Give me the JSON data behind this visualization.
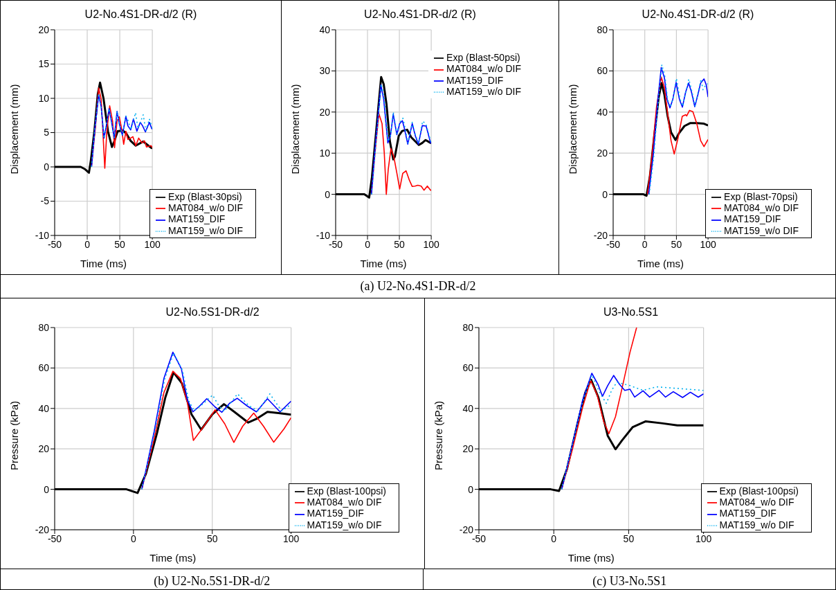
{
  "chart_data": [
    {
      "type": "line",
      "title": "U2-No.4S1-DR-d/2 (R)",
      "xlabel": "Time (ms)",
      "ylabel": "Displacement (mm)",
      "xlim": [
        -50,
        100
      ],
      "xticks": [
        -50,
        0,
        50,
        100
      ],
      "ylim": [
        -10,
        20
      ],
      "yticks": [
        -10,
        -5,
        0,
        5,
        10,
        15,
        20
      ],
      "grid": true,
      "legend": "bottom right",
      "marker": "none",
      "series": [
        {
          "name": "Exp (Blast-30psi)",
          "color": "#000000",
          "x": [
            -50,
            -10,
            -4,
            2.6,
            5.7,
            11,
            16.2,
            19.7,
            25,
            31.9,
            38,
            41.5,
            46.7,
            54.5,
            59.8,
            66.7,
            74.6,
            86,
            98,
            100
          ],
          "values": [
            0,
            0,
            -0.3,
            -0.85,
            1,
            5.2,
            10.6,
            12.3,
            10,
            5.2,
            2.9,
            3.7,
            5.2,
            5.3,
            4.9,
            3.8,
            3.1,
            3.7,
            2.8,
            2.7
          ]
        },
        {
          "name": "MAT084_w/o DIF",
          "color": "#ff0000",
          "x": [
            6.6,
            12.7,
            17.6,
            21.4,
            27,
            30.1,
            34.5,
            38.9,
            42,
            45.8,
            49.3,
            52.8,
            56,
            59.4,
            62.4,
            66.7,
            70.2,
            74.6,
            79,
            84,
            88,
            91,
            98,
            100
          ],
          "values": [
            0,
            6,
            11.5,
            9.9,
            -0.2,
            5.2,
            8.9,
            6.7,
            2.8,
            6.7,
            7.3,
            5.6,
            3.3,
            5.2,
            4,
            4.2,
            4.4,
            3.1,
            4.2,
            3.5,
            3.8,
            2.9,
            3.1,
            2.8
          ]
        },
        {
          "name": "MAT159_DIF",
          "color": "#0000ff",
          "x": [
            6.6,
            11.8,
            17.6,
            21.4,
            25.8,
            29.3,
            33.6,
            37.1,
            41.5,
            45.8,
            49.3,
            54,
            59.4,
            62.4,
            66.7,
            71,
            76.3,
            81.5,
            85,
            89.4,
            95.5,
            99,
            100
          ],
          "values": [
            0,
            5.6,
            10.5,
            8.8,
            4.2,
            6,
            8.5,
            6.7,
            4.2,
            8.1,
            6.3,
            4.6,
            7.4,
            6,
            5.4,
            7,
            5.2,
            6.5,
            6,
            5.1,
            6.5,
            5.6,
            5.5
          ]
        },
        {
          "name": "MAT159_w/o DIF",
          "color": "#00b0f0",
          "line_style": "dotted",
          "x": [
            6.6,
            11.8,
            17.6,
            21.4,
            25.8,
            29.3,
            33.6,
            37.1,
            41.5,
            45.8,
            49.3,
            54,
            59.4,
            63,
            67,
            74.2,
            78,
            86,
            90,
            95.5,
            100
          ],
          "values": [
            0,
            5.6,
            10.7,
            8.8,
            4.2,
            6,
            8.5,
            6.7,
            4.2,
            8.1,
            6.3,
            4.6,
            7.4,
            6.7,
            5.4,
            7.9,
            5.6,
            7.6,
            5.3,
            7,
            5.6
          ]
        }
      ]
    },
    {
      "type": "line",
      "title": "U2-No.4S1-DR-d/2 (R)",
      "xlabel": "Time (ms)",
      "ylabel": "Displacement (mm)",
      "xlim": [
        -50,
        100
      ],
      "xticks": [
        -50,
        0,
        50,
        100
      ],
      "ylim": [
        -10,
        40
      ],
      "yticks": [
        -10,
        0,
        10,
        20,
        30,
        40
      ],
      "grid": true,
      "legend": "top right",
      "marker": "none",
      "annotations": [
        "(a) U2-No.4S1-DR-d/2"
      ],
      "series": [
        {
          "name": "Exp (Blast-50psi)",
          "color": "#000000",
          "x": [
            -50,
            -5,
            2.6,
            7,
            14,
            21.4,
            25.4,
            29.8,
            35,
            40.4,
            43,
            49,
            54.4,
            62.3,
            68.4,
            75.4,
            80.7,
            86,
            91.2,
            99,
            100
          ],
          "values": [
            0,
            0,
            -0.8,
            4.2,
            16,
            28.5,
            26.8,
            21.9,
            13,
            8.5,
            9.2,
            14.2,
            15.4,
            15.7,
            13.9,
            12.8,
            12,
            12.5,
            13.2,
            12.5,
            12.5
          ]
        },
        {
          "name": "MAT084_w/o DIF",
          "color": "#ff0000",
          "x": [
            6.1,
            11.4,
            17.9,
            22.8,
            26.3,
            29.5,
            32.5,
            36.8,
            41.2,
            46.5,
            50.5,
            55.3,
            60.5,
            65.8,
            70.2,
            74.6,
            79,
            84.2,
            88.6,
            93.9,
            99,
            100
          ],
          "values": [
            0,
            9.5,
            19.6,
            17.2,
            10.1,
            0,
            6,
            11.1,
            9.2,
            4.8,
            1.3,
            5.1,
            5.7,
            3.4,
            1.9,
            2,
            2.2,
            2,
            1,
            2,
            1,
            1
          ]
        },
        {
          "name": "MAT159_DIF",
          "color": "#0000ff",
          "x": [
            6.1,
            12.3,
            21,
            25.4,
            31.9,
            36,
            40.4,
            46,
            50.5,
            54.7,
            57.9,
            63.2,
            70.2,
            75.1,
            79.8,
            86,
            92,
            99,
            100
          ],
          "values": [
            0,
            11.9,
            26.6,
            23.1,
            12.5,
            14.2,
            19.5,
            14.5,
            17.2,
            17.9,
            16,
            12.2,
            17.2,
            14.2,
            12.2,
            16.7,
            16.6,
            12.5,
            12.5
          ]
        },
        {
          "name": "MAT159_w/o DIF",
          "color": "#00b0f0",
          "line_style": "dotted",
          "x": [
            6.6,
            12.8,
            21.5,
            26,
            32.3,
            36.3,
            40.4,
            46,
            50.5,
            55.5,
            58.5,
            63.5,
            70.2,
            75.1,
            80,
            86.5,
            92,
            99,
            100
          ],
          "values": [
            0,
            11.5,
            26.8,
            23.5,
            12.8,
            14.5,
            20,
            14.8,
            17.5,
            18.5,
            16.5,
            12.5,
            17.5,
            14.5,
            12.5,
            17.8,
            17,
            13,
            12.8
          ]
        }
      ]
    },
    {
      "type": "line",
      "title": "U2-No.4S1-DR-d/2 (R)",
      "xlabel": "Time (ms)",
      "ylabel": "Displacement (mm)",
      "xlim": [
        -50,
        100
      ],
      "xticks": [
        -50,
        0,
        50,
        100
      ],
      "ylim": [
        -20,
        80
      ],
      "yticks": [
        -20,
        0,
        20,
        40,
        60,
        80
      ],
      "grid": true,
      "legend": "bottom right",
      "marker": "none",
      "series": [
        {
          "name": "Exp (Blast-70psi)",
          "color": "#000000",
          "x": [
            -50,
            -2,
            2.7,
            8,
            15,
            22,
            26.5,
            31,
            36.2,
            41.5,
            48.6,
            53.9,
            62.7,
            71.6,
            82.2,
            92.8,
            100
          ],
          "values": [
            0,
            0,
            -0.7,
            8.5,
            28.5,
            47.3,
            54.1,
            48.5,
            37.9,
            30.2,
            26.4,
            29.6,
            33.2,
            34.6,
            34.6,
            34.4,
            33.5
          ]
        },
        {
          "name": "MAT084_w/o DIF",
          "color": "#ff0000",
          "x": [
            4.4,
            11.5,
            18.6,
            26,
            31,
            36.2,
            41.5,
            46.5,
            52.1,
            59.2,
            64.5,
            66.3,
            70.7,
            76,
            82.2,
            88.3,
            93.6,
            100
          ],
          "values": [
            0,
            19,
            42.6,
            57,
            52,
            39,
            26.1,
            19.6,
            26.7,
            37.9,
            38.7,
            38.1,
            40.8,
            40.2,
            34.4,
            26.1,
            23.2,
            26.7
          ]
        },
        {
          "name": "MAT159_DIF",
          "color": "#0000ff",
          "x": [
            6.2,
            13.3,
            20.3,
            26,
            31,
            35.3,
            39.8,
            44.2,
            49.5,
            54.8,
            59.5,
            64.5,
            69.3,
            73.9,
            79,
            84,
            88.3,
            93.6,
            97.2,
            100
          ],
          "values": [
            0,
            19,
            44.9,
            61.6,
            56.7,
            46.1,
            42,
            46.1,
            54.4,
            46.1,
            42.4,
            49.6,
            54.1,
            49.6,
            42.6,
            48.5,
            54.1,
            56.1,
            53.2,
            47.3
          ]
        },
        {
          "name": "MAT159_w/o DIF",
          "color": "#00b0f0",
          "line_style": "dotted",
          "x": [
            7,
            14,
            21,
            27,
            32,
            36,
            40.5,
            45,
            50,
            55.5,
            60,
            65,
            69.6,
            74.5,
            79.5,
            84.5,
            89,
            92,
            96,
            100
          ],
          "values": [
            0,
            18,
            44,
            63,
            57,
            46,
            42.5,
            47,
            56.4,
            46.5,
            42.8,
            50,
            56,
            50,
            43,
            50,
            56,
            50.8,
            53,
            53.8
          ]
        }
      ]
    },
    {
      "type": "line",
      "title": "U2-No.5S1-DR-d/2",
      "xlabel": "Time (ms)",
      "ylabel": "Pressure (kPa)",
      "xlim": [
        -50,
        100
      ],
      "xticks": [
        -50,
        0,
        50,
        100
      ],
      "ylim": [
        -20,
        80
      ],
      "yticks": [
        -20,
        0,
        20,
        40,
        60,
        80
      ],
      "grid": true,
      "legend": "bottom right",
      "marker": "none",
      "annotations": [
        "(b) U2-No.5S1-DR-d/2"
      ],
      "series": [
        {
          "name": "Exp (Blast-100psi)",
          "color": "#000000",
          "x": [
            -50,
            -4.4,
            2.6,
            7.9,
            14.9,
            20.2,
            25.4,
            30.7,
            36.8,
            43,
            50,
            57.4,
            64,
            72.8,
            78,
            85,
            92,
            100
          ],
          "values": [
            0,
            0,
            -1.8,
            7.7,
            27.7,
            45.4,
            57.8,
            52.5,
            37.1,
            29.5,
            37.1,
            42.1,
            38.3,
            33,
            34.8,
            38.3,
            37.7,
            36.9
          ]
        },
        {
          "name": "MAT084_w/o DIF",
          "color": "#ff0000",
          "x": [
            5.3,
            13.2,
            19.3,
            25,
            29.8,
            34.2,
            38,
            44.7,
            51.8,
            57.9,
            63.7,
            69.3,
            76.3,
            82.5,
            89,
            95.6,
            100
          ],
          "values": [
            0,
            25.4,
            47.8,
            58.4,
            54.8,
            43,
            24.2,
            31.2,
            39.3,
            32.4,
            23.2,
            31.2,
            37.7,
            31.2,
            23.3,
            30,
            35.4
          ]
        },
        {
          "name": "MAT159_DIF",
          "color": "#0000ff",
          "x": [
            5.3,
            13.2,
            19.3,
            25,
            30.4,
            34.2,
            37.7,
            42.1,
            46.5,
            51.8,
            56.1,
            60.9,
            65.8,
            72,
            78,
            85,
            93,
            100
          ],
          "values": [
            0,
            28.9,
            54.8,
            67.8,
            59.6,
            44.2,
            38.3,
            41.3,
            44.8,
            40.7,
            38.1,
            42.5,
            45,
            41.3,
            38.3,
            44.8,
            38.3,
            43.6
          ]
        },
        {
          "name": "MAT159_w/o DIF",
          "color": "#00b0f0",
          "line_style": "dotted",
          "x": [
            5.3,
            13.5,
            19.8,
            25.5,
            31,
            35,
            38.5,
            43,
            50.2,
            54,
            57.5,
            62,
            66,
            73,
            79,
            86.5,
            94,
            100
          ],
          "values": [
            0,
            28.5,
            54.5,
            67.5,
            59,
            44,
            38.8,
            41.5,
            46.6,
            41.5,
            38.5,
            43,
            47.2,
            41.5,
            38.8,
            47.2,
            38.8,
            42
          ]
        }
      ]
    },
    {
      "type": "line",
      "title": "U3-No.5S1",
      "xlabel": "Time (ms)",
      "ylabel": "Pressure (kPa)",
      "xlim": [
        -50,
        100
      ],
      "xticks": [
        -50,
        0,
        50,
        100
      ],
      "ylim": [
        -20,
        80
      ],
      "yticks": [
        -20,
        0,
        20,
        40,
        60,
        80
      ],
      "grid": true,
      "legend": "bottom right",
      "marker": "none",
      "annotations": [
        "(c) U3-No.5S1"
      ],
      "series": [
        {
          "name": "Exp (Blast-100psi)",
          "color": "#000000",
          "x": [
            -50,
            -2,
            3.5,
            8.8,
            15.8,
            21,
            24.9,
            29.8,
            36,
            41.2,
            45.6,
            52.6,
            61.4,
            71.9,
            82.5,
            99,
            100
          ],
          "values": [
            0,
            0,
            -0.8,
            10,
            32.4,
            47.8,
            54.2,
            45.4,
            26.5,
            19.8,
            24.2,
            30.7,
            33.6,
            32.7,
            31.6,
            31.6,
            31.6
          ]
        },
        {
          "name": "MAT084_w/o DIF",
          "color": "#ff0000",
          "x": [
            5.3,
            12.3,
            19.3,
            24.6,
            29,
            33.3,
            36.8,
            41.2,
            45.6,
            50.9,
            55.3
          ],
          "values": [
            0,
            19.4,
            40.7,
            53.9,
            46.6,
            33.6,
            27.5,
            35.9,
            50.1,
            67.8,
            80
          ]
        },
        {
          "name": "MAT159_DIF",
          "color": "#0000ff",
          "x": [
            5.3,
            12.3,
            19.3,
            25.4,
            29.5,
            32.5,
            36,
            40,
            43.9,
            47.4,
            50.9,
            54,
            59.6,
            64,
            70.2,
            74.6,
            79.8,
            86,
            91.2,
            96.5,
            100
          ],
          "values": [
            0,
            21.8,
            44.2,
            57.4,
            51.9,
            46,
            51.3,
            56.3,
            51.9,
            48.9,
            49.5,
            45.6,
            48.7,
            45.6,
            48.9,
            45.6,
            48.3,
            45.4,
            48,
            45.6,
            47.2
          ]
        },
        {
          "name": "MAT159_w/o DIF",
          "color": "#00b0f0",
          "line_style": "dotted",
          "x": [
            5.3,
            19.3,
            25.4,
            30.7,
            35.1,
            38.6,
            42.1,
            50.9,
            59.6,
            68.4,
            78.9,
            89.5,
            100
          ],
          "values": [
            0,
            43,
            56.6,
            47.8,
            42.5,
            48.9,
            53,
            51.3,
            48.9,
            50.7,
            50.1,
            49.5,
            48.9
          ]
        }
      ]
    }
  ]
}
